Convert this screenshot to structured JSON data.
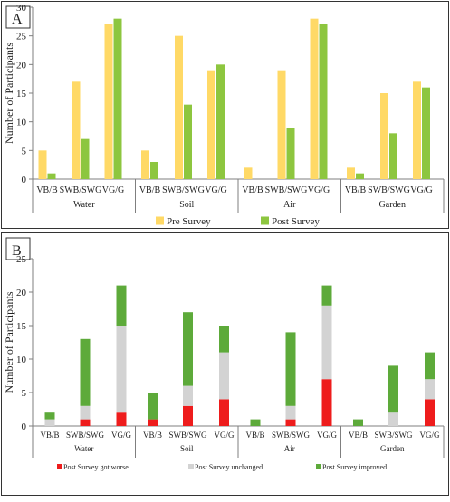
{
  "colors": {
    "pre": "#FFD966",
    "post": "#8DC63F",
    "worse": "#EE1C1C",
    "unchanged": "#D3D3D3",
    "improved": "#5DAA3A",
    "axis": "#7F7F7F",
    "text": "#222222"
  },
  "chart_data": [
    {
      "type": "bar",
      "panel_label": "A",
      "ylabel": "Number of Participants",
      "ylim": [
        0,
        30
      ],
      "yticks": [
        0,
        5,
        10,
        15,
        20,
        25,
        30
      ],
      "groups": [
        "Water",
        "Soil",
        "Air",
        "Garden"
      ],
      "categories": [
        "VB/B",
        "SWB/SWG",
        "VG/G"
      ],
      "series": [
        {
          "name": "Pre Survey",
          "values": [
            [
              5,
              17,
              27
            ],
            [
              5,
              25,
              19
            ],
            [
              2,
              19,
              28
            ],
            [
              2,
              15,
              17
            ]
          ]
        },
        {
          "name": "Post Survey",
          "values": [
            [
              1,
              7,
              28
            ],
            [
              3,
              13,
              20
            ],
            [
              0,
              9,
              27
            ],
            [
              1,
              8,
              16
            ]
          ]
        }
      ],
      "legend_position": "bottom",
      "grid": false
    },
    {
      "type": "bar",
      "stacked": true,
      "panel_label": "B",
      "ylabel": "Number of Participants",
      "ylim": [
        0,
        25
      ],
      "yticks": [
        0,
        5,
        10,
        15,
        20,
        25
      ],
      "groups": [
        "Water",
        "Soil",
        "Air",
        "Garden"
      ],
      "categories": [
        "VB/B",
        "SWB/SWG",
        "VG/G"
      ],
      "series": [
        {
          "name": "Post Survey  got worse",
          "values": [
            [
              0,
              1,
              2
            ],
            [
              1,
              3,
              4
            ],
            [
              0,
              1,
              7
            ],
            [
              0,
              0,
              4
            ]
          ]
        },
        {
          "name": "Post Survey unchanged",
          "values": [
            [
              1,
              2,
              13
            ],
            [
              0,
              3,
              7
            ],
            [
              0,
              2,
              11
            ],
            [
              0,
              2,
              3
            ]
          ]
        },
        {
          "name": "Post Survey improved",
          "values": [
            [
              1,
              10,
              6
            ],
            [
              4,
              11,
              4
            ],
            [
              1,
              11,
              3
            ],
            [
              1,
              7,
              4
            ]
          ]
        }
      ],
      "legend_position": "bottom",
      "grid": false
    }
  ]
}
